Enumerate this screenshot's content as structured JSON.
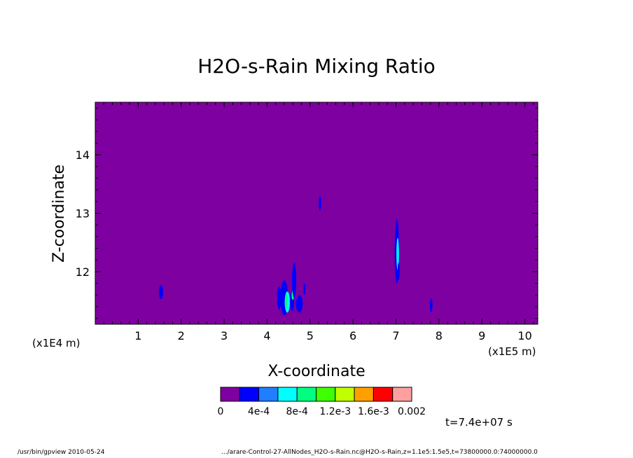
{
  "footer": {
    "program": "/usr/bin/gpview  2010-05-24",
    "source": ".../arare-Control-27-AllNodes_H2O-s-Rain.nc@H2O-s-Rain,z=1.1e5:1.5e5,t=73800000.0:74000000.0"
  },
  "chart_data": {
    "type": "heatmap",
    "title": "H2O-s-Rain Mixing Ratio",
    "xlabel": "X-coordinate",
    "ylabel": "Z-coordinate",
    "x_scale_note": "(x1E5 m)",
    "y_scale_note": "(x1E4 m)",
    "time_note": "t=7.4e+07 s",
    "xlim": [
      0,
      10.3
    ],
    "ylim": [
      11.1,
      14.9
    ],
    "x_ticks": [
      "1",
      "2",
      "3",
      "4",
      "5",
      "6",
      "7",
      "8",
      "9",
      "10"
    ],
    "y_ticks": [
      "12",
      "13",
      "14"
    ],
    "background_color": "#7f00a0",
    "colorbar": {
      "colors": [
        "#7f00a0",
        "#0000ff",
        "#1f7fff",
        "#00ffff",
        "#00ff80",
        "#40ff00",
        "#c0ff00",
        "#ffa000",
        "#ff0000",
        "#ffa0a0"
      ],
      "labels": [
        "0",
        "4e-4",
        "8e-4",
        "1.2e-3",
        "1.6e-3",
        "0.002"
      ]
    },
    "features": [
      {
        "x": 1.53,
        "z": 11.65,
        "dx": 0.05,
        "dz": 0.12,
        "level": 1
      },
      {
        "x": 5.23,
        "z": 13.17,
        "dx": 0.03,
        "dz": 0.12,
        "level": 1
      },
      {
        "x": 4.28,
        "z": 11.55,
        "dx": 0.05,
        "dz": 0.2,
        "level": 1
      },
      {
        "x": 4.4,
        "z": 11.55,
        "dx": 0.09,
        "dz": 0.3,
        "level": 1
      },
      {
        "x": 4.47,
        "z": 11.48,
        "dx": 0.06,
        "dz": 0.18,
        "level": 3
      },
      {
        "x": 4.45,
        "z": 11.5,
        "dx": 0.03,
        "dz": 0.12,
        "level": 4
      },
      {
        "x": 4.58,
        "z": 11.5,
        "dx": 0.05,
        "dz": 0.18,
        "level": 1
      },
      {
        "x": 4.6,
        "z": 11.6,
        "dx": 0.03,
        "dz": 0.08,
        "level": 4
      },
      {
        "x": 4.63,
        "z": 11.85,
        "dx": 0.05,
        "dz": 0.3,
        "level": 1
      },
      {
        "x": 4.75,
        "z": 11.45,
        "dx": 0.08,
        "dz": 0.15,
        "level": 1
      },
      {
        "x": 4.87,
        "z": 11.7,
        "dx": 0.02,
        "dz": 0.1,
        "level": 1
      },
      {
        "x": 7.02,
        "z": 12.35,
        "dx": 0.05,
        "dz": 0.55,
        "level": 1
      },
      {
        "x": 7.04,
        "z": 12.3,
        "dx": 0.03,
        "dz": 0.28,
        "level": 3
      },
      {
        "x": 7.06,
        "z": 12.0,
        "dx": 0.02,
        "dz": 0.15,
        "level": 1
      },
      {
        "x": 7.82,
        "z": 11.42,
        "dx": 0.03,
        "dz": 0.12,
        "level": 1
      }
    ]
  }
}
